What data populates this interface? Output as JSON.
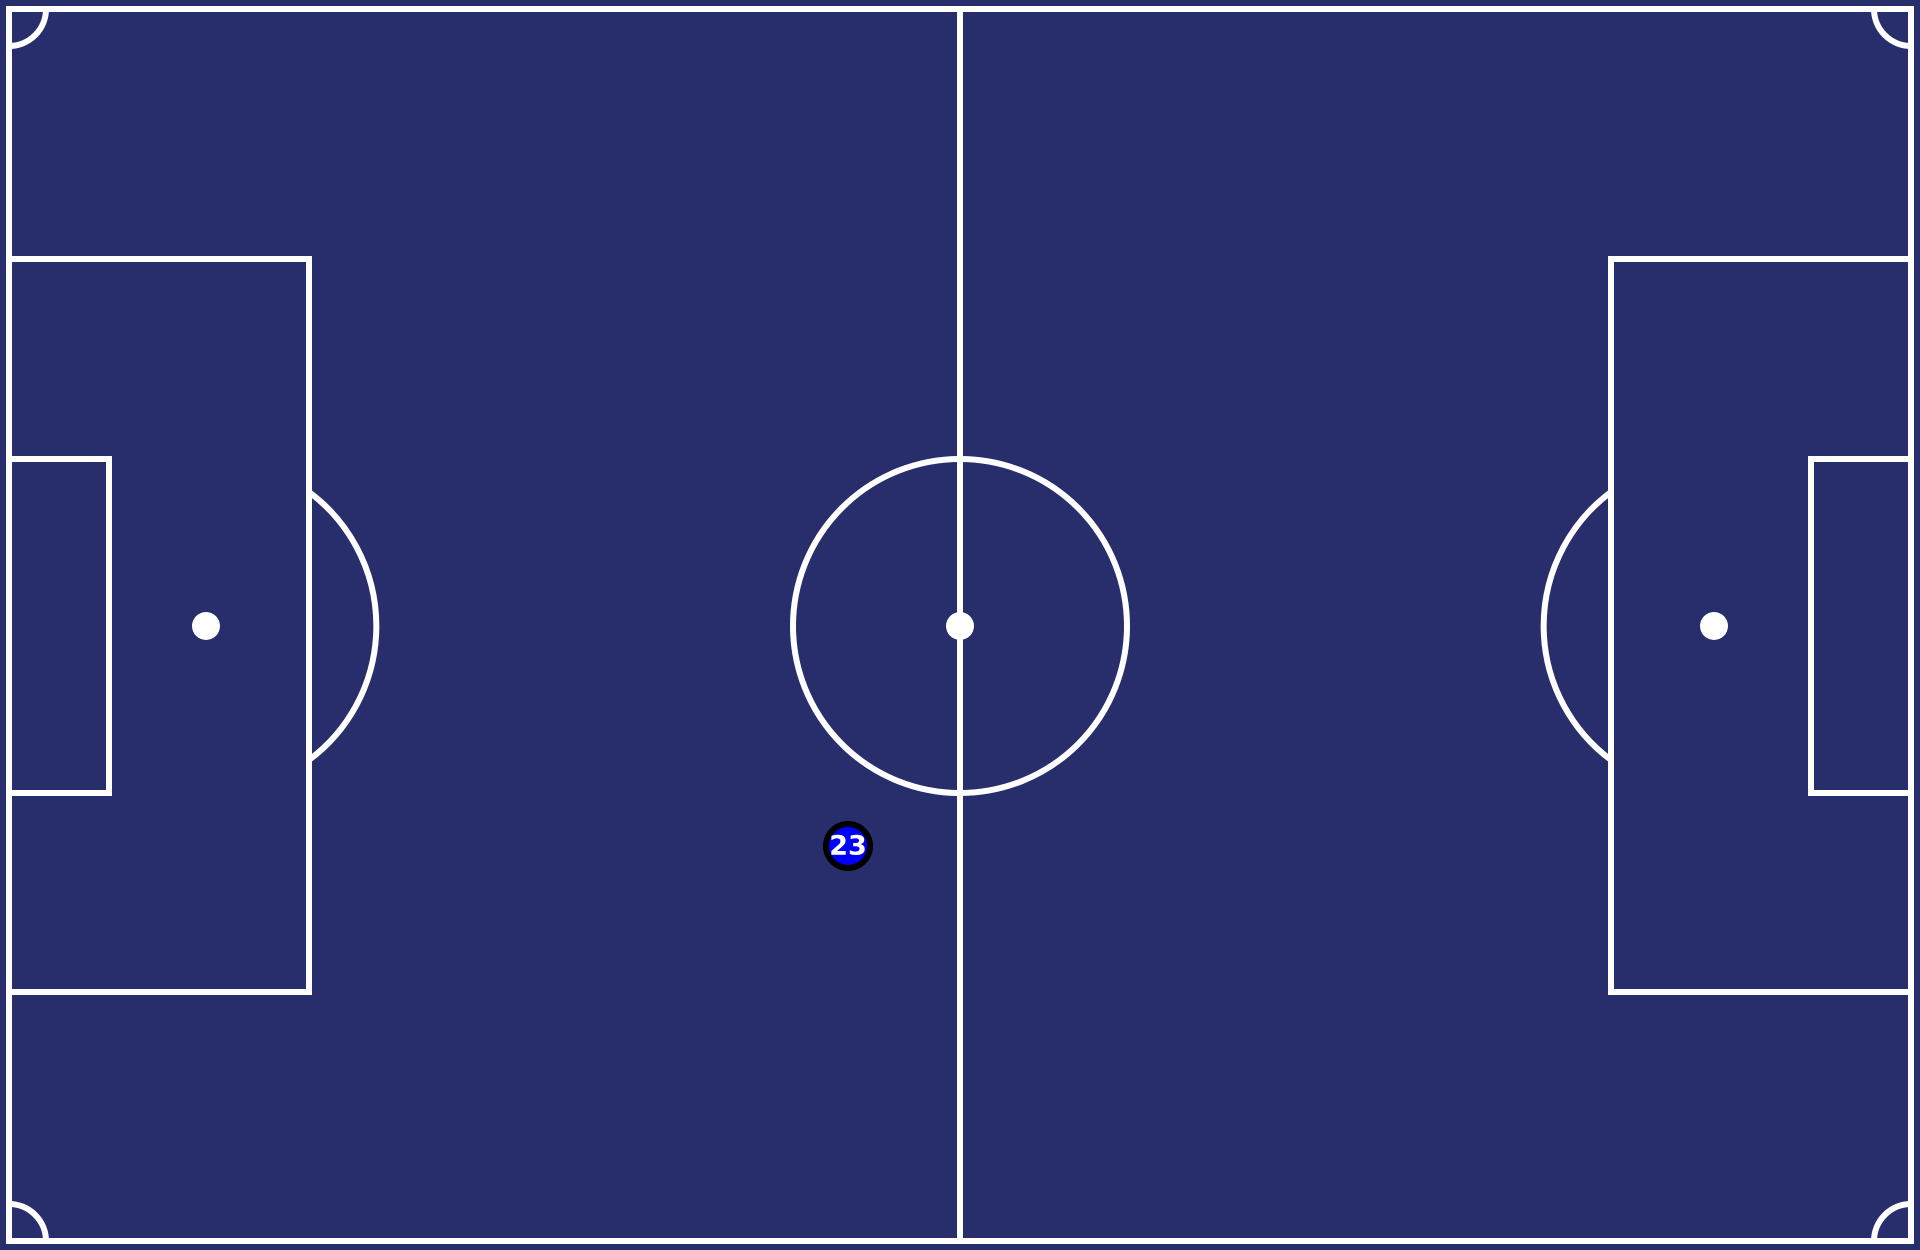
{
  "colors": {
    "pitch": "#282d6b",
    "lines": "#ffffff",
    "player_fill": "#0000ff",
    "player_stroke": "#000000",
    "player_text": "#ffffff"
  },
  "player": {
    "number": "23"
  }
}
